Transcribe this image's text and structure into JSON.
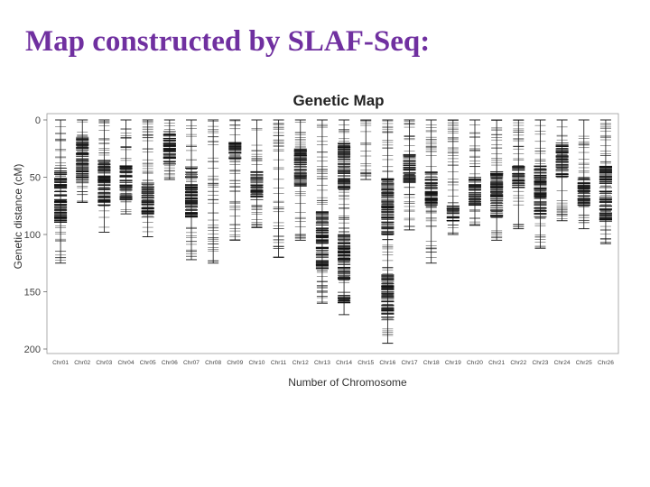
{
  "slide": {
    "title": "Map constructed by SLAF-Seq:"
  },
  "chart_data": {
    "type": "genetic-map",
    "title": "Genetic Map",
    "xlabel": "Number of Chromosome",
    "ylabel": "Genetic distance (cM)",
    "ylim": [
      0,
      200
    ],
    "y_axis_inverted": true,
    "yticks": [
      0,
      50,
      100,
      150,
      200
    ],
    "categories": [
      "Chr01",
      "Chr02",
      "Chr03",
      "Chr04",
      "Chr05",
      "Chr06",
      "Chr07",
      "Chr08",
      "Chr09",
      "Chr10",
      "Chr11",
      "Chr12",
      "Chr13",
      "Chr14",
      "Chr15",
      "Chr16",
      "Chr17",
      "Chr18",
      "Chr19",
      "Chr20",
      "Chr21",
      "Chr22",
      "Chr23",
      "Chr24",
      "Chr25",
      "Chr26"
    ],
    "lengths_cM": [
      125,
      72,
      98,
      82,
      102,
      52,
      122,
      125,
      105,
      94,
      120,
      105,
      160,
      170,
      52,
      195,
      96,
      125,
      100,
      92,
      105,
      95,
      112,
      88,
      95,
      108
    ],
    "dense_regions_cM": [
      [
        [
          42,
          90
        ]
      ],
      [
        [
          15,
          55
        ]
      ],
      [
        [
          35,
          75
        ]
      ],
      [
        [
          40,
          70
        ]
      ],
      [
        [
          55,
          85
        ]
      ],
      [
        [
          10,
          40
        ]
      ],
      [
        [
          40,
          85
        ]
      ],
      [],
      [
        [
          18,
          35
        ]
      ],
      [
        [
          45,
          70
        ]
      ],
      [],
      [
        [
          25,
          60
        ]
      ],
      [
        [
          80,
          130
        ]
      ],
      [
        [
          20,
          60
        ],
        [
          100,
          140
        ],
        [
          150,
          160
        ]
      ],
      [],
      [
        [
          50,
          100
        ],
        [
          135,
          175
        ]
      ],
      [
        [
          30,
          55
        ]
      ],
      [
        [
          45,
          75
        ]
      ],
      [
        [
          75,
          90
        ]
      ],
      [
        [
          50,
          75
        ]
      ],
      [
        [
          45,
          85
        ]
      ],
      [
        [
          40,
          60
        ]
      ],
      [
        [
          40,
          85
        ]
      ],
      [
        [
          20,
          50
        ]
      ],
      [
        [
          50,
          75
        ]
      ],
      [
        [
          40,
          90
        ]
      ]
    ],
    "colors": {
      "marker": "#111111",
      "axis_box": "#999999",
      "background": "#ffffff"
    }
  }
}
